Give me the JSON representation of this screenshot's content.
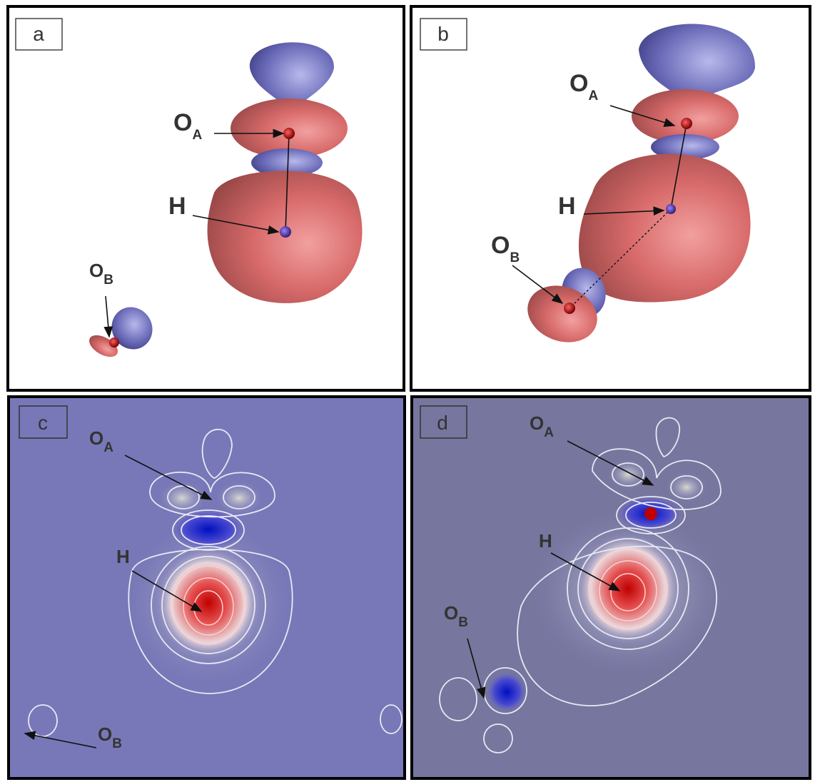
{
  "panels": [
    {
      "label": "a",
      "atoms": [
        {
          "symbol": "O",
          "subscript": "A"
        },
        {
          "symbol": "H"
        },
        {
          "symbol": "O",
          "subscript": "B"
        }
      ]
    },
    {
      "label": "b",
      "atoms": [
        {
          "symbol": "O",
          "subscript": "A"
        },
        {
          "symbol": "H"
        },
        {
          "symbol": "O",
          "subscript": "B"
        }
      ]
    },
    {
      "label": "c",
      "atoms": [
        {
          "symbol": "O",
          "subscript": "A"
        },
        {
          "symbol": "H"
        },
        {
          "symbol": "O",
          "subscript": "B"
        }
      ]
    },
    {
      "label": "d",
      "atoms": [
        {
          "symbol": "O",
          "subscript": "A"
        },
        {
          "symbol": "H"
        },
        {
          "symbol": "O",
          "subscript": "B"
        }
      ]
    }
  ]
}
